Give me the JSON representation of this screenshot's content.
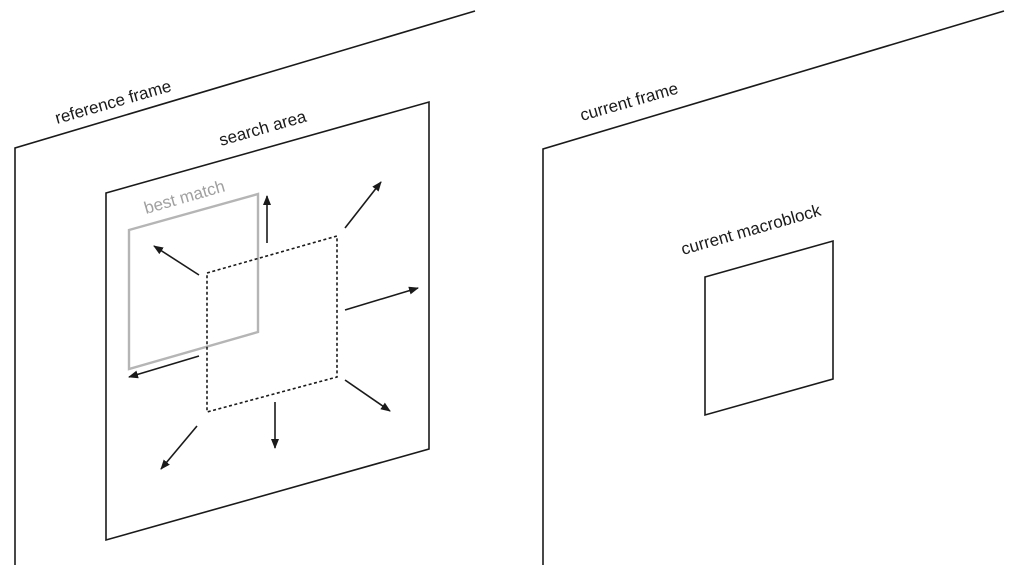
{
  "reference_frame": {
    "label": "reference frame"
  },
  "search_area": {
    "label": "search area"
  },
  "best_match": {
    "label": "best match"
  },
  "current_frame": {
    "label": "current frame"
  },
  "current_macroblock": {
    "label": "current macroblock"
  },
  "colors": {
    "line": "#1a1a1a",
    "best_match": "#b5b5b5",
    "best_match_text": "#a0a0a0",
    "background": "#ffffff"
  }
}
